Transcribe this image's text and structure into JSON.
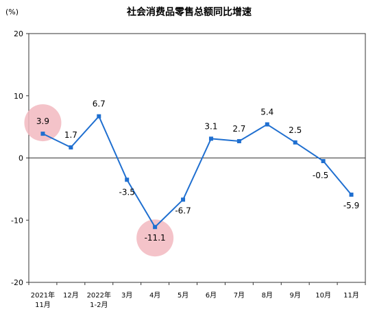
{
  "chart_data": {
    "type": "line",
    "title": "社会消费品零售总额同比增速",
    "unit_label": "(%)",
    "categories": [
      [
        "2021年",
        "11月"
      ],
      [
        "12月"
      ],
      [
        "2022年",
        "1-2月"
      ],
      [
        "3月"
      ],
      [
        "4月"
      ],
      [
        "5月"
      ],
      [
        "6月"
      ],
      [
        "7月"
      ],
      [
        "8月"
      ],
      [
        "9月"
      ],
      [
        "10月"
      ],
      [
        "11月"
      ]
    ],
    "series": [
      {
        "values": [
          3.9,
          1.7,
          6.7,
          -3.5,
          -11.1,
          -6.7,
          3.1,
          2.7,
          5.4,
          2.5,
          -0.5,
          -5.9
        ],
        "labels": [
          "3.9",
          "1.7",
          "6.7",
          "-3.5",
          "-11.1",
          "-6.7",
          "3.1",
          "2.7",
          "5.4",
          "2.5",
          "-0.5",
          "-5.9"
        ]
      }
    ],
    "ylim": [
      -20,
      20
    ],
    "yticks": [
      "20",
      "10",
      "0",
      "-10",
      "-20"
    ],
    "highlighted": [
      "4月",
      "11月"
    ],
    "colors": {
      "line": "#1f6fd0",
      "marker": "#1f6fd0",
      "highlight": "#f2b8bf"
    }
  }
}
